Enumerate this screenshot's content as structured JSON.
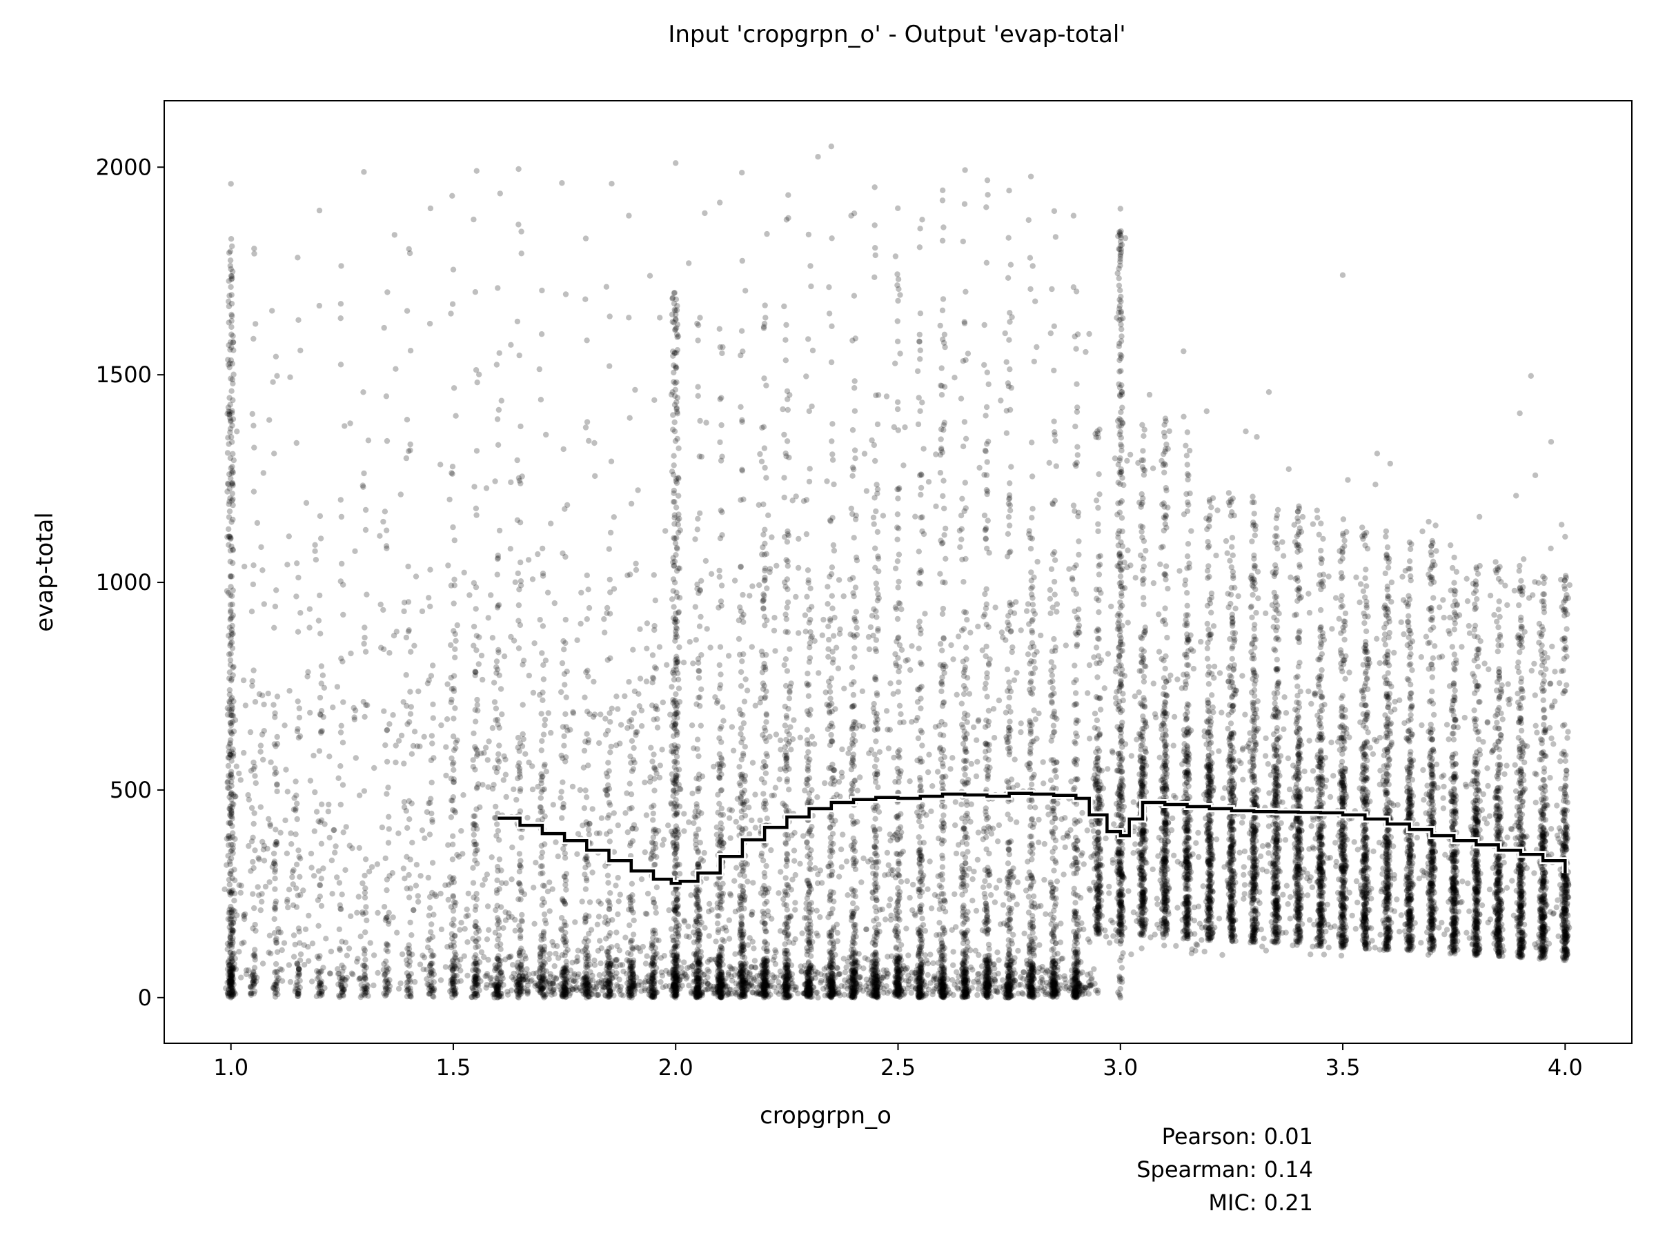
{
  "chart_data": {
    "type": "scatter",
    "title": "Input 'cropgrpn_o' - Output 'evap-total'",
    "xlabel": "cropgrpn_o",
    "ylabel": "evap-total",
    "xlim": [
      0.85,
      4.15
    ],
    "ylim": [
      -110,
      2160
    ],
    "xticks": [
      1.0,
      1.5,
      2.0,
      2.5,
      3.0,
      3.5,
      4.0
    ],
    "xtick_labels": [
      "1.0",
      "1.5",
      "2.0",
      "2.5",
      "3.0",
      "3.5",
      "4.0"
    ],
    "yticks": [
      0,
      500,
      1000,
      1500,
      2000
    ],
    "ytick_labels": [
      "0",
      "500",
      "1000",
      "1500",
      "2000"
    ],
    "grid": false,
    "point_color": "#000000",
    "point_alpha": 0.25,
    "point_summary": [
      {
        "x": 1.0,
        "y_min": 0,
        "y_max": 1960
      },
      {
        "x": 2.0,
        "y_min": 0,
        "y_max": 2010
      },
      {
        "x": 2.32,
        "y_min": 0,
        "y_max": 2025
      },
      {
        "x": 2.35,
        "y_min": 0,
        "y_max": 2050
      },
      {
        "x": 3.0,
        "y_min": 0,
        "y_max": 1900
      },
      {
        "x": 3.5,
        "y_min": 130,
        "y_max": 1740
      },
      {
        "x": 4.0,
        "y_min": 90,
        "y_max": 1110
      }
    ],
    "series": [
      {
        "type": "step",
        "color": "#000000",
        "outline_color": "#ffffff",
        "x": [
          1.6,
          1.65,
          1.7,
          1.75,
          1.8,
          1.85,
          1.9,
          1.95,
          1.99,
          2.01,
          2.05,
          2.1,
          2.15,
          2.2,
          2.25,
          2.3,
          2.35,
          2.4,
          2.45,
          2.5,
          2.55,
          2.6,
          2.65,
          2.7,
          2.75,
          2.8,
          2.85,
          2.9,
          2.93,
          2.97,
          3.0,
          3.02,
          3.05,
          3.1,
          3.15,
          3.2,
          3.25,
          3.3,
          3.35,
          3.4,
          3.45,
          3.5,
          3.55,
          3.6,
          3.65,
          3.7,
          3.75,
          3.8,
          3.85,
          3.9,
          3.95,
          4.0
        ],
        "y": [
          432,
          415,
          395,
          378,
          355,
          330,
          305,
          285,
          275,
          280,
          300,
          340,
          380,
          410,
          435,
          455,
          470,
          477,
          482,
          480,
          485,
          490,
          488,
          485,
          492,
          490,
          487,
          480,
          440,
          400,
          390,
          430,
          470,
          465,
          460,
          455,
          450,
          448,
          447,
          446,
          445,
          440,
          430,
          418,
          405,
          390,
          378,
          368,
          355,
          345,
          330,
          300
        ]
      }
    ],
    "stats": {
      "pearson": "Pearson: 0.01",
      "spearman": "Spearman: 0.14",
      "mic": "MIC: 0.21"
    }
  }
}
